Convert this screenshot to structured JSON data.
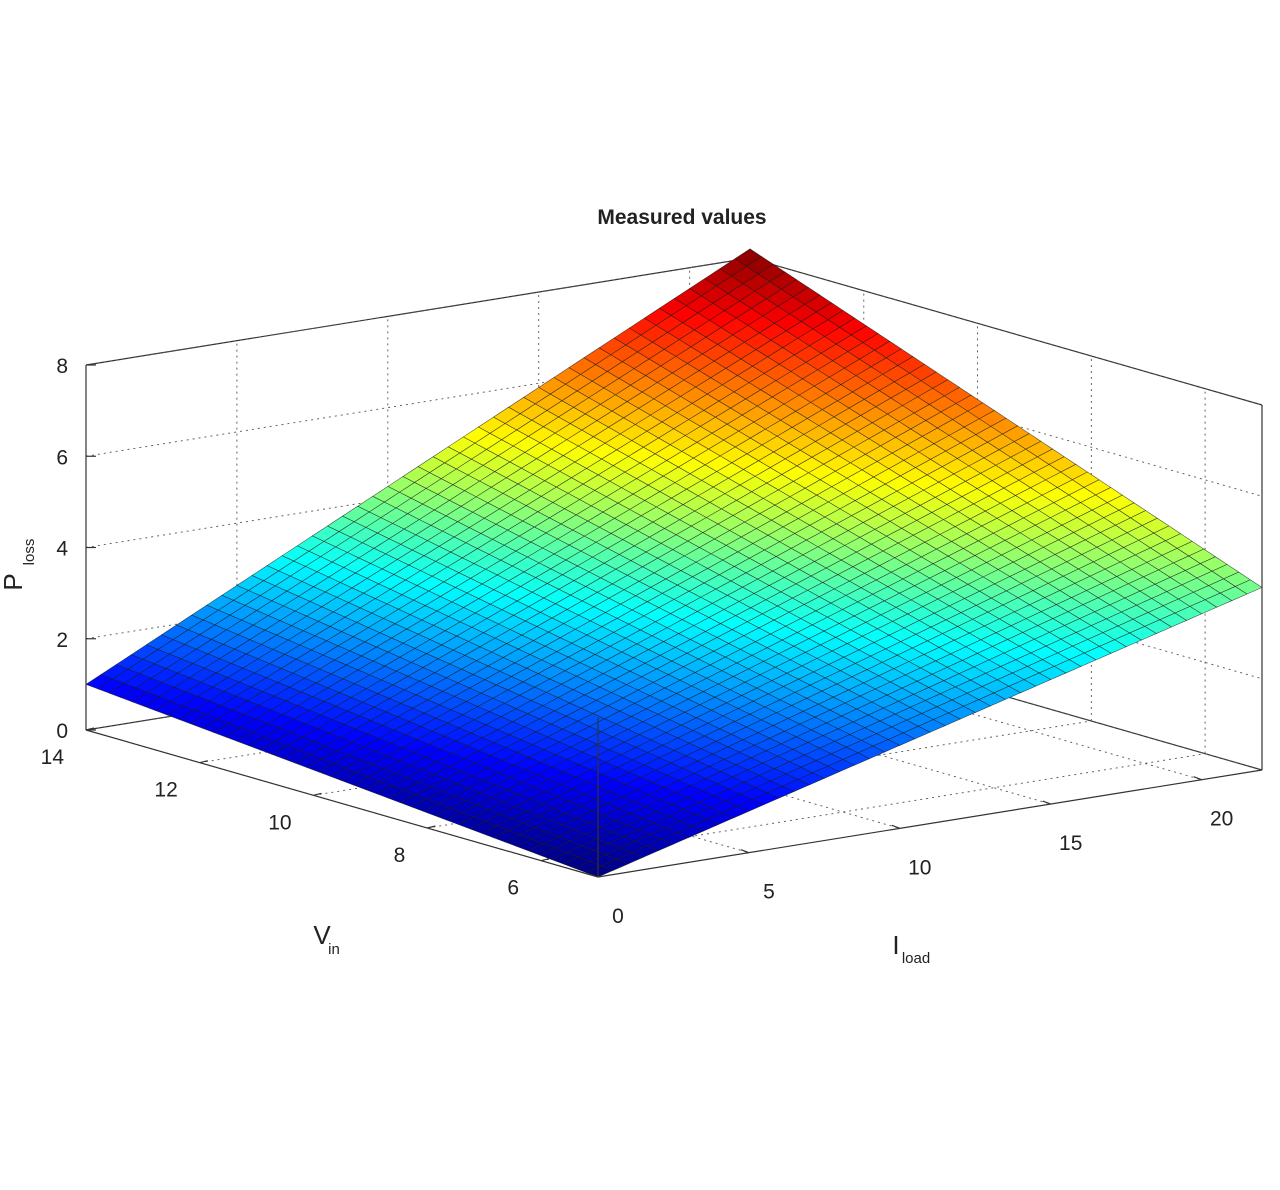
{
  "chart_data": {
    "type": "surface",
    "title": "Measured values",
    "xlabel": "I",
    "xlabel_sub": "load",
    "ylabel": "V",
    "ylabel_sub": "in",
    "zlabel": "P",
    "zlabel_sub": "loss",
    "xlim": [
      0,
      22
    ],
    "ylim": [
      5,
      14
    ],
    "zlim": [
      0,
      8
    ],
    "xticks": [
      0,
      5,
      10,
      15,
      20
    ],
    "yticks": [
      6,
      8,
      10,
      12,
      14
    ],
    "zticks": [
      0,
      2,
      4,
      6,
      8
    ],
    "grid": true,
    "colormap": "jet",
    "surface_corners": [
      {
        "x": 0,
        "y": 14,
        "z": 1.0
      },
      {
        "x": 0,
        "y": 5,
        "z": 0.0
      },
      {
        "x": 22,
        "y": 5,
        "z": 4.0
      },
      {
        "x": 22,
        "y": 14,
        "z": 8.2
      }
    ]
  }
}
